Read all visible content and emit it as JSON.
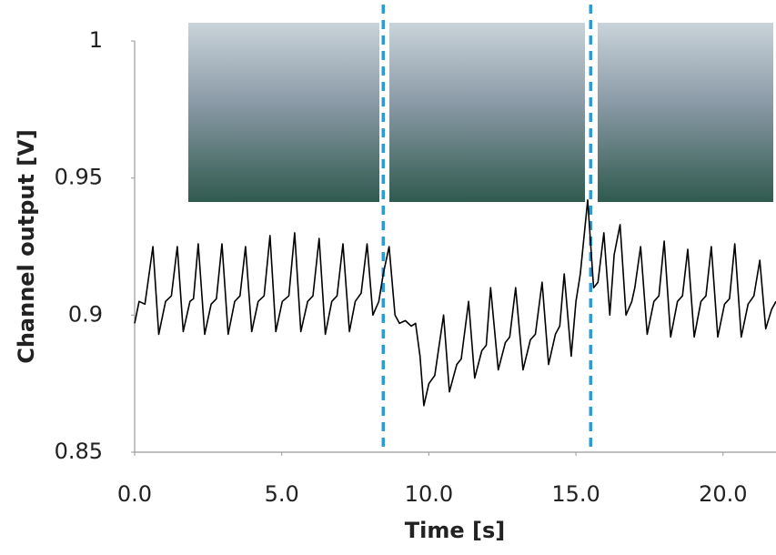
{
  "chart_data": {
    "type": "line",
    "xlabel": "Time [s]",
    "ylabel": "Channel output [V]",
    "xlim": [
      0,
      21.8
    ],
    "ylim": [
      0.85,
      1
    ],
    "xticks": [
      {
        "value": 0,
        "label": "0.0"
      },
      {
        "value": 5,
        "label": "5.0"
      },
      {
        "value": 10,
        "label": "10.0"
      },
      {
        "value": 15,
        "label": "15.0"
      },
      {
        "value": 20,
        "label": "20.0"
      }
    ],
    "yticks": [
      0.85,
      0.9,
      0.95,
      1
    ],
    "grid": false,
    "vlines": [
      {
        "x": 8.45,
        "color": "#2e9bd6"
      },
      {
        "x": 15.5,
        "color": "#2e9bd6"
      }
    ],
    "series": [
      {
        "color": "#000000",
        "x": [
          0,
          0.15,
          0.35,
          0.62,
          0.82,
          1.05,
          1.25,
          1.45,
          1.65,
          1.88,
          2.0,
          2.16,
          2.38,
          2.6,
          2.78,
          2.97,
          3.18,
          3.4,
          3.58,
          3.77,
          3.98,
          4.2,
          4.4,
          4.6,
          4.8,
          5.02,
          5.24,
          5.44,
          5.65,
          5.88,
          6.06,
          6.27,
          6.48,
          6.7,
          6.88,
          7.08,
          7.3,
          7.5,
          7.7,
          7.9,
          8.1,
          8.3,
          8.45,
          8.65,
          8.85,
          9.0,
          9.2,
          9.4,
          9.55,
          9.7,
          9.83,
          10.0,
          10.2,
          10.5,
          10.7,
          10.95,
          11.1,
          11.35,
          11.56,
          11.8,
          11.95,
          12.1,
          12.36,
          12.6,
          12.75,
          12.95,
          13.2,
          13.45,
          13.62,
          13.85,
          14.07,
          14.3,
          14.45,
          14.6,
          14.84,
          15.0,
          15.15,
          15.4,
          15.6,
          15.75,
          15.95,
          16.15,
          16.3,
          16.5,
          16.7,
          16.9,
          17.0,
          17.2,
          17.42,
          17.65,
          17.82,
          18.0,
          18.22,
          18.45,
          18.62,
          18.8,
          19.02,
          19.25,
          19.42,
          19.6,
          19.82,
          20.05,
          20.22,
          20.4,
          20.62,
          20.85,
          21.05,
          21.25,
          21.45,
          21.65,
          21.8
        ],
        "values": [
          0.897,
          0.905,
          0.904,
          0.925,
          0.893,
          0.905,
          0.907,
          0.925,
          0.894,
          0.905,
          0.906,
          0.926,
          0.893,
          0.904,
          0.906,
          0.926,
          0.893,
          0.905,
          0.907,
          0.925,
          0.894,
          0.905,
          0.907,
          0.929,
          0.894,
          0.905,
          0.907,
          0.93,
          0.894,
          0.905,
          0.907,
          0.928,
          0.893,
          0.905,
          0.907,
          0.926,
          0.894,
          0.905,
          0.908,
          0.926,
          0.9,
          0.905,
          0.915,
          0.925,
          0.9,
          0.897,
          0.898,
          0.896,
          0.897,
          0.885,
          0.867,
          0.875,
          0.878,
          0.9,
          0.872,
          0.882,
          0.884,
          0.905,
          0.877,
          0.887,
          0.889,
          0.91,
          0.88,
          0.89,
          0.892,
          0.91,
          0.88,
          0.891,
          0.893,
          0.912,
          0.882,
          0.893,
          0.896,
          0.915,
          0.885,
          0.905,
          0.915,
          0.942,
          0.91,
          0.912,
          0.93,
          0.9,
          0.922,
          0.933,
          0.9,
          0.905,
          0.91,
          0.925,
          0.893,
          0.905,
          0.907,
          0.927,
          0.892,
          0.905,
          0.907,
          0.924,
          0.892,
          0.905,
          0.907,
          0.925,
          0.892,
          0.904,
          0.906,
          0.926,
          0.892,
          0.904,
          0.907,
          0.92,
          0.895,
          0.902,
          0.905
        ]
      }
    ]
  }
}
